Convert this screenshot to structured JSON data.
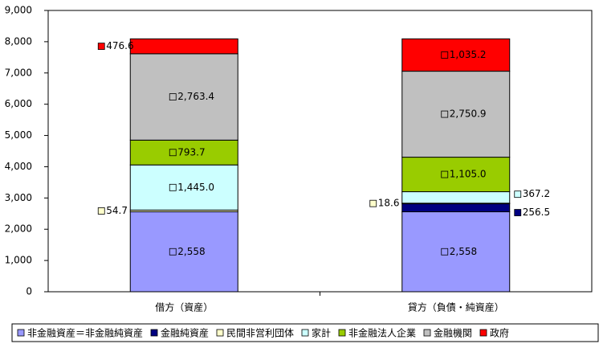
{
  "chart_data": {
    "type": "stacked_bar",
    "categories": [
      "借方（資産）",
      "貸方（負債・純資産）"
    ],
    "series": [
      {
        "name": "非金融資産＝非金融純資産",
        "color": "#9999ff",
        "values": [
          2558,
          2558
        ],
        "value_labels": [
          "2,558",
          "2,558"
        ]
      },
      {
        "name": "金融純資産",
        "color": "#000080",
        "values": [
          null,
          256.5
        ],
        "value_labels": [
          null,
          "256.5"
        ]
      },
      {
        "name": "民間非営利団体",
        "color": "#ffffcc",
        "values": [
          54.7,
          18.6
        ],
        "value_labels": [
          "54.7",
          "18.6"
        ]
      },
      {
        "name": "家計",
        "color": "#ccffff",
        "values": [
          1445.0,
          367.2
        ],
        "value_labels": [
          "1,445.0",
          "367.2"
        ]
      },
      {
        "name": "非金融法人企業",
        "color": "#99cc00",
        "values": [
          793.7,
          1105.0
        ],
        "value_labels": [
          "793.7",
          "1,105.0"
        ]
      },
      {
        "name": "金融機関",
        "color": "#c0c0c0",
        "values": [
          2763.4,
          2750.9
        ],
        "value_labels": [
          "2,763.4",
          "2,750.9"
        ]
      },
      {
        "name": "政府",
        "color": "#ff0000",
        "values": [
          476.6,
          1035.2
        ],
        "value_labels": [
          "476.6",
          "1,035.2"
        ]
      }
    ],
    "ylim": [
      0,
      9000
    ],
    "yticks": [
      0,
      {
        "value": 1000,
        "label": "1,000"
      },
      {
        "value": 2000,
        "label": "2,000"
      },
      {
        "value": 3000,
        "label": "3,000"
      },
      {
        "value": 4000,
        "label": "4,000"
      },
      {
        "value": 5000,
        "label": "5,000"
      },
      {
        "value": 6000,
        "label": "6,000"
      },
      {
        "value": 7000,
        "label": "7,000"
      },
      {
        "value": 8000,
        "label": "8,000"
      },
      {
        "value": 9000,
        "label": "9,000"
      }
    ],
    "grid": false
  }
}
